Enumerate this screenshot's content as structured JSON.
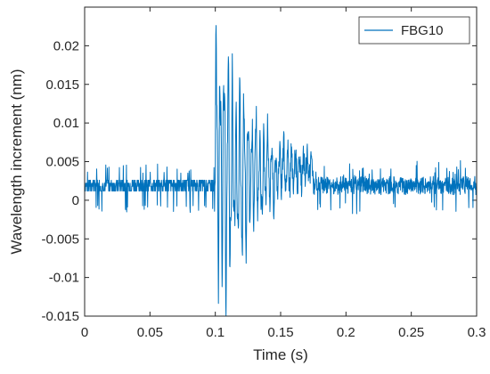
{
  "chart_data": {
    "type": "line",
    "title": "",
    "xlabel": "Time (s)",
    "ylabel": "Wavelength increment (nm)",
    "xlim": [
      0,
      0.3
    ],
    "ylim": [
      -0.015,
      0.025
    ],
    "xticks": [
      0,
      0.05,
      0.1,
      0.15,
      0.2,
      0.25,
      0.3
    ],
    "xtick_labels": [
      "0",
      "0.05",
      "0.1",
      "0.15",
      "0.2",
      "0.25",
      "0.3"
    ],
    "yticks": [
      -0.015,
      -0.01,
      -0.005,
      0,
      0.005,
      0.01,
      0.015,
      0.02
    ],
    "ytick_labels": [
      "-0.015",
      "-0.01",
      "-0.005",
      "0",
      "0.005",
      "0.01",
      "0.015",
      "0.02"
    ],
    "grid": false,
    "legend_position": "top-right",
    "series": [
      {
        "name": "FBG10",
        "color": "#0072BD",
        "description_points": {
          "x": [
            0,
            0.01,
            0.02,
            0.03,
            0.04,
            0.05,
            0.06,
            0.07,
            0.08,
            0.09,
            0.1,
            0.102,
            0.104,
            0.106,
            0.108,
            0.11,
            0.112,
            0.114,
            0.116,
            0.118,
            0.12,
            0.122,
            0.124,
            0.126,
            0.128,
            0.13,
            0.135,
            0.14,
            0.145,
            0.15,
            0.16,
            0.17,
            0.18,
            0.19,
            0.2,
            0.22,
            0.24,
            0.26,
            0.28,
            0.3
          ],
          "y": [
            0.002,
            0.0025,
            0.0015,
            0.002,
            0.002,
            0.0022,
            0.0018,
            0.002,
            0.0022,
            0.002,
            0.002,
            0.0205,
            -0.003,
            0.019,
            -0.0105,
            0.016,
            -0.0085,
            0.017,
            -0.012,
            0.0155,
            -0.0095,
            0.012,
            -0.006,
            0.011,
            -0.0035,
            0.009,
            -0.002,
            0.007,
            -0.002,
            0.006,
            0.004,
            0.005,
            0.0015,
            0.0035,
            0.002,
            0.0025,
            0.0015,
            0.002,
            0.002,
            0.0015
          ]
        }
      }
    ]
  }
}
